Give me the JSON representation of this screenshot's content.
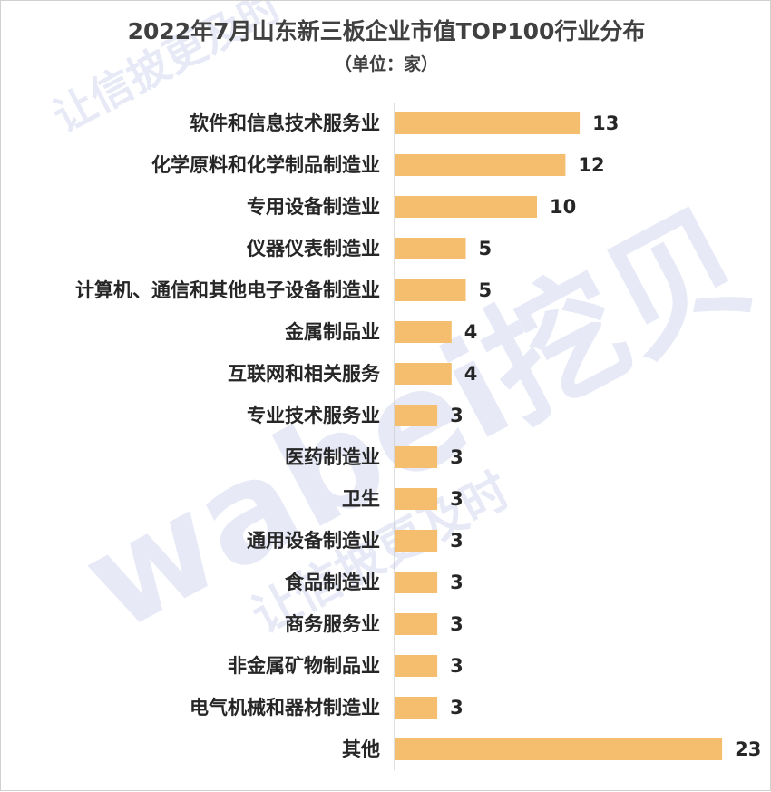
{
  "title": "2022年7月山东新三板企业市值TOP100行业分布",
  "subtitle": "（单位：家）",
  "watermark": {
    "brand": "wabei挖贝",
    "slogan": "让信披更及时"
  },
  "colors": {
    "bar": "#F4BE6E",
    "axis": "#BFBFBF",
    "text": "#262626",
    "title": "#404040",
    "watermark": "#DFE3F3"
  },
  "chart_data": {
    "type": "bar",
    "orientation": "horizontal",
    "title": "2022年7月山东新三板企业市值TOP100行业分布",
    "subtitle": "（单位：家）",
    "categories": [
      "软件和信息技术服务业",
      "化学原料和化学制品制造业",
      "专用设备制造业",
      "仪器仪表制造业",
      "计算机、通信和其他电子设备制造业",
      "金属制品业",
      "互联网和相关服务",
      "专业技术服务业",
      "医药制造业",
      "卫生",
      "通用设备制造业",
      "食品制造业",
      "商务服务业",
      "非金属矿物制品业",
      "电气机械和器材制造业",
      "其他"
    ],
    "values": [
      13,
      12,
      10,
      5,
      5,
      4,
      4,
      3,
      3,
      3,
      3,
      3,
      3,
      3,
      3,
      23
    ],
    "xlim": [
      0,
      23
    ],
    "grid": false,
    "legend": "none",
    "data_labels": true
  }
}
